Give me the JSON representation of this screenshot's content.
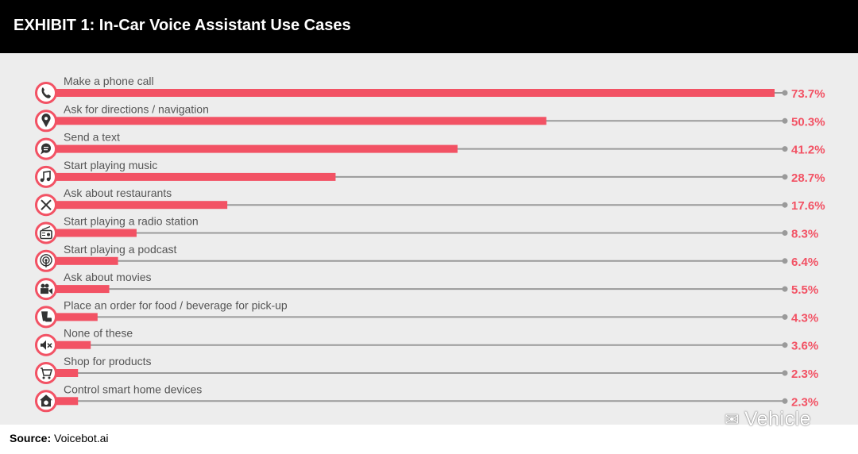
{
  "header": {
    "title": "EXHIBIT 1: In-Car Voice Assistant Use Cases"
  },
  "source": {
    "label": "Source:",
    "text": "Voicebot.ai"
  },
  "watermark": {
    "text": "Vehicle",
    "icon": "wechat-icon"
  },
  "colors": {
    "bar": "#f25264",
    "value": "#f25264",
    "track": "#9a9a9a",
    "label": "#555555",
    "icon_ring": "#f25264",
    "panel": "#ededed",
    "header": "#000000"
  },
  "chart_data": {
    "type": "bar",
    "orientation": "horizontal",
    "xlim": [
      0,
      75
    ],
    "unit": "%",
    "categories": [
      "Make a phone call",
      "Ask for directions / navigation",
      "Send a text",
      "Start playing music",
      "Ask about restaurants",
      "Start playing a radio station",
      "Start playing a podcast",
      "Ask about movies",
      "Place an order for food / beverage for pick-up",
      "None of these",
      "Shop for products",
      "Control smart home devices"
    ],
    "values": [
      73.7,
      50.3,
      41.2,
      28.7,
      17.6,
      8.3,
      6.4,
      5.5,
      4.3,
      3.6,
      2.3,
      2.3
    ],
    "value_labels": [
      "73.7%",
      "50.3%",
      "41.2%",
      "28.7%",
      "17.6%",
      "8.3%",
      "6.4%",
      "5.5%",
      "4.3%",
      "3.6%",
      "2.3%",
      "2.3%"
    ],
    "icons": [
      "phone-icon",
      "map-pin-icon",
      "chat-bubble-icon",
      "music-note-icon",
      "fork-knife-icon",
      "radio-icon",
      "podcast-icon",
      "movie-camera-icon",
      "food-order-icon",
      "mute-icon",
      "shopping-cart-icon",
      "smart-home-icon"
    ]
  }
}
